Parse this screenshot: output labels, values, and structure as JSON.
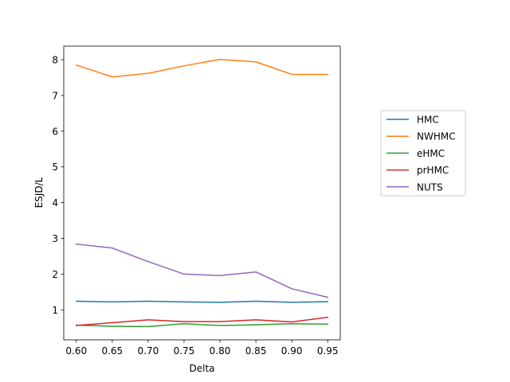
{
  "chart_data": {
    "type": "line",
    "xlabel": "Delta",
    "ylabel": "ESJD/L",
    "x": [
      0.6,
      0.65,
      0.7,
      0.75,
      0.8,
      0.85,
      0.9,
      0.95
    ],
    "x_tick_labels": [
      "0.60",
      "0.65",
      "0.70",
      "0.75",
      "0.80",
      "0.85",
      "0.90",
      "0.95"
    ],
    "y_ticks": [
      1,
      2,
      3,
      4,
      5,
      6,
      7,
      8
    ],
    "xlim": [
      0.5825,
      0.9675
    ],
    "ylim": [
      0.16,
      8.38
    ],
    "grid": false,
    "legend_position": "right",
    "series": [
      {
        "name": "HMC",
        "color": "#1f77b4",
        "values": [
          1.24,
          1.22,
          1.24,
          1.22,
          1.21,
          1.24,
          1.21,
          1.23
        ]
      },
      {
        "name": "NWHMC",
        "color": "#ff7f0e",
        "values": [
          7.85,
          7.52,
          7.62,
          7.83,
          8.01,
          7.94,
          7.59,
          7.59
        ]
      },
      {
        "name": "eHMC",
        "color": "#2ca02c",
        "values": [
          0.57,
          0.54,
          0.53,
          0.61,
          0.56,
          0.58,
          0.61,
          0.6
        ]
      },
      {
        "name": "prHMC",
        "color": "#d62728",
        "values": [
          0.56,
          0.64,
          0.72,
          0.67,
          0.67,
          0.72,
          0.66,
          0.79
        ]
      },
      {
        "name": "NUTS",
        "color": "#9467bd",
        "values": [
          2.84,
          2.73,
          2.35,
          2.0,
          1.96,
          2.06,
          1.59,
          1.35
        ]
      }
    ]
  }
}
